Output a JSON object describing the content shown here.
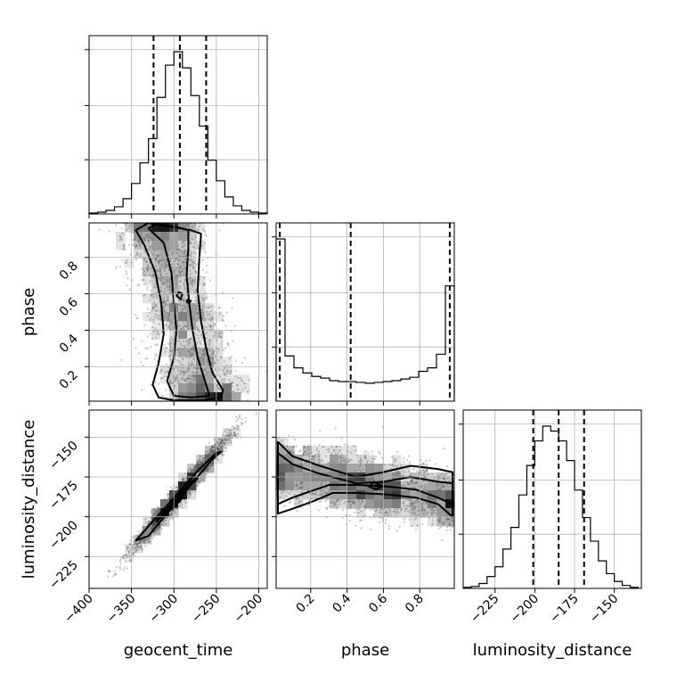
{
  "chart_data": {
    "type": "corner",
    "parameters": [
      "geocent_time",
      "phase",
      "luminosity_distance"
    ],
    "ranges": {
      "geocent_time": [
        -400,
        -190
      ],
      "phase": [
        0.01,
        0.99
      ],
      "luminosity_distance": [
        -245,
        -133
      ]
    },
    "ticks": {
      "geocent_time": [
        -400,
        -350,
        -300,
        -250,
        -200
      ],
      "phase": [
        0.2,
        0.4,
        0.6,
        0.8
      ],
      "luminosity_distance": [
        -225,
        -200,
        -175,
        -150
      ]
    },
    "tick_labels": {
      "geocent_time": [
        "−400",
        "−350",
        "−300",
        "−250",
        "−200"
      ],
      "phase": [
        "0.2",
        "0.4",
        "0.6",
        "0.8"
      ],
      "luminosity_distance": [
        "−225",
        "−200",
        "−175",
        "−150"
      ]
    },
    "grid": true,
    "histograms": {
      "geocent_time": {
        "bin_edges": [
          -400,
          -390,
          -380,
          -370,
          -360,
          -350,
          -340,
          -330,
          -320,
          -310,
          -300,
          -290,
          -280,
          -270,
          -260,
          -250,
          -240,
          -230,
          -220,
          -210,
          -200,
          -190
        ],
        "counts": [
          1,
          2,
          4,
          8,
          17,
          34,
          57,
          84,
          130,
          166,
          181,
          163,
          132,
          98,
          60,
          37,
          19,
          9,
          4,
          2,
          1
        ],
        "quantiles": [
          -324,
          -293,
          -262
        ]
      },
      "phase": {
        "bin_edges": [
          0.01,
          0.059,
          0.108,
          0.157,
          0.206,
          0.255,
          0.304,
          0.353,
          0.402,
          0.451,
          0.5,
          0.549,
          0.598,
          0.647,
          0.696,
          0.745,
          0.794,
          0.843,
          0.892,
          0.941,
          0.99
        ],
        "counts": [
          190,
          53,
          39,
          33,
          29,
          27,
          24,
          23,
          23,
          22,
          21,
          22,
          23,
          24,
          26,
          28,
          35,
          39,
          55,
          135
        ],
        "quantiles": [
          0.03,
          0.42,
          0.965
        ]
      },
      "luminosity_distance": {
        "bin_edges": [
          -245,
          -240,
          -235,
          -230,
          -225,
          -220,
          -215,
          -210,
          -205,
          -200,
          -195,
          -190,
          -185,
          -180,
          -175,
          -170,
          -165,
          -160,
          -155,
          -150,
          -145,
          -140,
          -135
        ],
        "counts": [
          1,
          2,
          5,
          12,
          22,
          40,
          62,
          95,
          125,
          150,
          165,
          160,
          150,
          130,
          100,
          72,
          48,
          28,
          15,
          7,
          3,
          1
        ],
        "quantiles": [
          -201,
          -185,
          -169
        ]
      }
    },
    "pairs": [
      {
        "x": "geocent_time",
        "y": "phase",
        "scatter_points": 2600,
        "contours": [
          [
            [
              -330,
              0.99
            ],
            [
              -305,
              0.97
            ],
            [
              -280,
              0.95
            ],
            [
              -268,
              0.93
            ],
            [
              -270,
              0.8
            ],
            [
              -272,
              0.62
            ],
            [
              -268,
              0.45
            ],
            [
              -262,
              0.3
            ],
            [
              -255,
              0.17
            ],
            [
              -242,
              0.07
            ],
            [
              -245,
              0.03
            ],
            [
              -265,
              0.015
            ],
            [
              -300,
              0.015
            ],
            [
              -318,
              0.03
            ],
            [
              -325,
              0.1
            ],
            [
              -318,
              0.22
            ],
            [
              -312,
              0.38
            ],
            [
              -315,
              0.55
            ],
            [
              -322,
              0.72
            ],
            [
              -335,
              0.87
            ],
            [
              -345,
              0.95
            ],
            [
              -330,
              0.99
            ]
          ],
          [
            [
              -320,
              0.985
            ],
            [
              -295,
              0.965
            ],
            [
              -283,
              0.95
            ],
            [
              -283,
              0.85
            ],
            [
              -285,
              0.7
            ],
            [
              -282,
              0.55
            ],
            [
              -278,
              0.4
            ],
            [
              -272,
              0.25
            ],
            [
              -262,
              0.1
            ],
            [
              -258,
              0.04
            ],
            [
              -280,
              0.03
            ],
            [
              -300,
              0.04
            ],
            [
              -308,
              0.12
            ],
            [
              -300,
              0.25
            ],
            [
              -297,
              0.4
            ],
            [
              -300,
              0.55
            ],
            [
              -303,
              0.72
            ],
            [
              -312,
              0.88
            ],
            [
              -330,
              0.96
            ],
            [
              -320,
              0.985
            ]
          ],
          [
            [
              -294,
              0.61
            ],
            [
              -290,
              0.6
            ],
            [
              -292,
              0.57
            ],
            [
              -297,
              0.59
            ],
            [
              -294,
              0.61
            ]
          ],
          [
            [
              -283,
              0.57
            ],
            [
              -280,
              0.56
            ],
            [
              -283,
              0.55
            ],
            [
              -285,
              0.56
            ],
            [
              -283,
              0.57
            ]
          ]
        ]
      },
      {
        "x": "geocent_time",
        "y": "luminosity_distance",
        "scatter_points": 2600,
        "contours": [
          [
            [
              -345,
              -215
            ],
            [
              -320,
              -200
            ],
            [
              -295,
              -185
            ],
            [
              -270,
              -170
            ],
            [
              -250,
              -160
            ],
            [
              -244,
              -159
            ],
            [
              -255,
              -164
            ],
            [
              -280,
              -180
            ],
            [
              -305,
              -196
            ],
            [
              -330,
              -212
            ],
            [
              -345,
              -215
            ]
          ],
          [
            [
              -320,
              -203
            ],
            [
              -300,
              -192
            ],
            [
              -280,
              -180
            ],
            [
              -272,
              -176
            ],
            [
              -280,
              -178
            ],
            [
              -300,
              -190
            ],
            [
              -320,
              -202
            ],
            [
              -320,
              -203
            ]
          ],
          [
            [
              -305,
              -196
            ],
            [
              -298,
              -193
            ],
            [
              -290,
              -188
            ],
            [
              -296,
              -191
            ],
            [
              -305,
              -196
            ]
          ]
        ]
      },
      {
        "x": "phase",
        "y": "luminosity_distance",
        "scatter_points": 2600,
        "contours": [
          [
            [
              0.02,
              -153
            ],
            [
              0.1,
              -162
            ],
            [
              0.25,
              -168
            ],
            [
              0.45,
              -175
            ],
            [
              0.6,
              -172
            ],
            [
              0.75,
              -168
            ],
            [
              0.9,
              -170
            ],
            [
              0.98,
              -172
            ],
            [
              0.98,
              -200
            ],
            [
              0.9,
              -192
            ],
            [
              0.78,
              -188
            ],
            [
              0.62,
              -186
            ],
            [
              0.45,
              -185
            ],
            [
              0.32,
              -185
            ],
            [
              0.22,
              -190
            ],
            [
              0.1,
              -195
            ],
            [
              0.02,
              -198
            ],
            [
              0.02,
              -153
            ]
          ],
          [
            [
              0.02,
              -160
            ],
            [
              0.1,
              -167
            ],
            [
              0.25,
              -173
            ],
            [
              0.45,
              -179
            ],
            [
              0.6,
              -178
            ],
            [
              0.75,
              -175
            ],
            [
              0.9,
              -178
            ],
            [
              0.98,
              -179
            ],
            [
              0.98,
              -192
            ],
            [
              0.9,
              -188
            ],
            [
              0.78,
              -183
            ],
            [
              0.62,
              -181
            ],
            [
              0.45,
              -180
            ],
            [
              0.3,
              -180
            ],
            [
              0.2,
              -184
            ],
            [
              0.1,
              -188
            ],
            [
              0.02,
              -192
            ],
            [
              0.02,
              -160
            ]
          ],
          [
            [
              0.55,
              -178
            ],
            [
              0.59,
              -181
            ],
            [
              0.56,
              -183
            ],
            [
              0.52,
              -181
            ],
            [
              0.55,
              -178
            ]
          ]
        ]
      }
    ]
  }
}
